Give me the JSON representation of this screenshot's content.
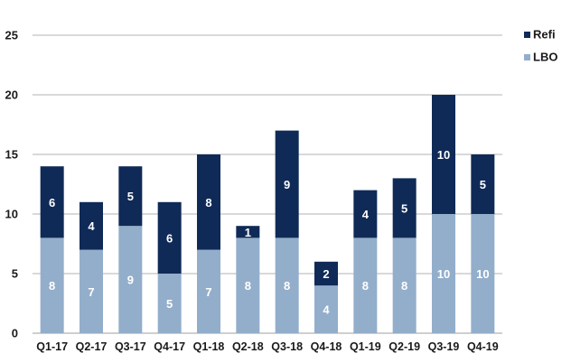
{
  "chart_data": {
    "type": "bar",
    "stacked": true,
    "categories": [
      "Q1-17",
      "Q2-17",
      "Q3-17",
      "Q4-17",
      "Q1-18",
      "Q2-18",
      "Q3-18",
      "Q4-18",
      "Q1-19",
      "Q2-19",
      "Q3-19",
      "Q4-19"
    ],
    "series": [
      {
        "name": "LBO",
        "color": "#93aecb",
        "values": [
          8,
          7,
          9,
          5,
          7,
          8,
          8,
          4,
          8,
          8,
          10,
          10
        ]
      },
      {
        "name": "Refi",
        "color": "#0f2a57",
        "values": [
          6,
          4,
          5,
          6,
          8,
          1,
          9,
          2,
          4,
          5,
          10,
          5
        ]
      }
    ],
    "ylim": [
      0,
      25
    ],
    "yticks": [
      0,
      5,
      10,
      15,
      20,
      25
    ],
    "grid": true,
    "legend": {
      "position": "top-right",
      "order": [
        "Refi",
        "LBO"
      ]
    },
    "title": "",
    "xlabel": "",
    "ylabel": "",
    "data_labels": true
  }
}
